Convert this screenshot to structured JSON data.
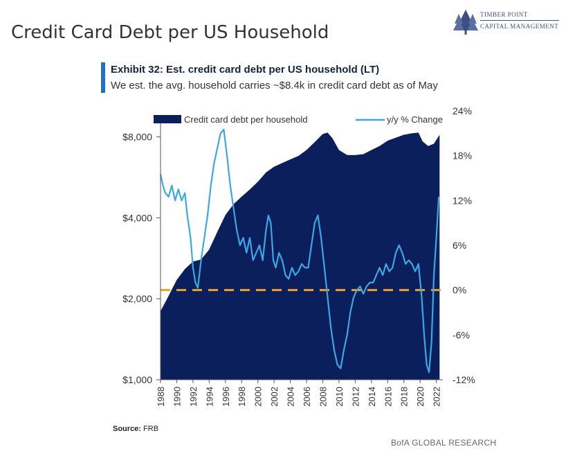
{
  "page": {
    "title": "Credit Card Debt per US Household",
    "logo": {
      "line1": "TIMBER POINT",
      "line2": "CAPITAL MANAGEMENT"
    },
    "exhibit_title": "Exhibit 32: Est. credit card debt per US household (LT)",
    "exhibit_subtitle": "We est. the avg. household carries ~$8.4k in credit card debt as of May",
    "source_label": "Source:",
    "source_value": "FRB",
    "footer": "BofA GLOBAL RESEARCH"
  },
  "colors": {
    "area": "#0b1f5c",
    "line": "#3aa8e4",
    "zero_line": "#f0a422",
    "accent_bar": "#1f6fc6"
  },
  "chart_data": {
    "type": "area",
    "legend": [
      {
        "name": "Credit card debt per household",
        "kind": "area"
      },
      {
        "name": "y/y % Change",
        "kind": "line"
      }
    ],
    "legend_position": "top",
    "x_ticks": [
      "1988",
      "1990",
      "1992",
      "1994",
      "1996",
      "1998",
      "2000",
      "2002",
      "2004",
      "2006",
      "2008",
      "2010",
      "2012",
      "2014",
      "2016",
      "2018",
      "2020",
      "2022"
    ],
    "x_range": [
      1988,
      2022.8
    ],
    "left_axis": {
      "scale": "log",
      "range": [
        1000,
        10000
      ],
      "ticks": [
        1000,
        2000,
        4000,
        8000
      ],
      "tick_labels": [
        "$1,000",
        "$2,000",
        "$4,000",
        "$8,000"
      ]
    },
    "right_axis": {
      "scale": "linear",
      "range": [
        -12,
        24
      ],
      "ticks": [
        -12,
        -6,
        0,
        6,
        12,
        18,
        24
      ],
      "tick_labels": [
        "-12%",
        "-6%",
        "0%",
        "6%",
        "12%",
        "18%",
        "24%"
      ]
    },
    "zero_reference": 0,
    "series": [
      {
        "name": "Credit card debt per household",
        "axis": "left",
        "points": [
          [
            1988.0,
            1800
          ],
          [
            1989.0,
            2050
          ],
          [
            1990.0,
            2350
          ],
          [
            1991.0,
            2580
          ],
          [
            1992.0,
            2750
          ],
          [
            1993.0,
            2800
          ],
          [
            1994.0,
            3050
          ],
          [
            1995.0,
            3550
          ],
          [
            1996.0,
            4100
          ],
          [
            1997.0,
            4500
          ],
          [
            1998.0,
            4800
          ],
          [
            1999.0,
            5100
          ],
          [
            2000.0,
            5450
          ],
          [
            2001.0,
            5900
          ],
          [
            2002.0,
            6200
          ],
          [
            2003.0,
            6400
          ],
          [
            2004.0,
            6600
          ],
          [
            2005.0,
            6800
          ],
          [
            2006.0,
            7150
          ],
          [
            2007.0,
            7650
          ],
          [
            2008.0,
            8200
          ],
          [
            2008.6,
            8300
          ],
          [
            2009.2,
            7900
          ],
          [
            2010.0,
            7150
          ],
          [
            2011.0,
            6850
          ],
          [
            2012.0,
            6850
          ],
          [
            2013.0,
            6900
          ],
          [
            2014.0,
            7150
          ],
          [
            2015.0,
            7400
          ],
          [
            2016.0,
            7750
          ],
          [
            2017.0,
            7950
          ],
          [
            2018.0,
            8150
          ],
          [
            2019.0,
            8250
          ],
          [
            2019.8,
            8300
          ],
          [
            2020.3,
            7700
          ],
          [
            2021.0,
            7400
          ],
          [
            2021.7,
            7550
          ],
          [
            2022.4,
            8150
          ]
        ]
      },
      {
        "name": "y/y % Change",
        "axis": "right",
        "points": [
          [
            1988.0,
            15.5
          ],
          [
            1988.3,
            14
          ],
          [
            1988.6,
            13
          ],
          [
            1989.0,
            12.5
          ],
          [
            1989.4,
            14
          ],
          [
            1989.8,
            12
          ],
          [
            1990.2,
            13.5
          ],
          [
            1990.6,
            12
          ],
          [
            1991.0,
            13
          ],
          [
            1991.3,
            10
          ],
          [
            1991.7,
            7
          ],
          [
            1992.0,
            3
          ],
          [
            1992.3,
            1
          ],
          [
            1992.6,
            0.3
          ],
          [
            1993.0,
            4
          ],
          [
            1993.4,
            7
          ],
          [
            1993.8,
            10
          ],
          [
            1994.2,
            14
          ],
          [
            1994.6,
            17
          ],
          [
            1995.0,
            19
          ],
          [
            1995.4,
            21
          ],
          [
            1995.8,
            21.5
          ],
          [
            1996.2,
            18
          ],
          [
            1996.6,
            14
          ],
          [
            1997.0,
            11
          ],
          [
            1997.4,
            8
          ],
          [
            1997.8,
            6
          ],
          [
            1998.2,
            7
          ],
          [
            1998.6,
            5
          ],
          [
            1999.0,
            7
          ],
          [
            1999.4,
            4
          ],
          [
            1999.8,
            5
          ],
          [
            2000.2,
            6
          ],
          [
            2000.6,
            4
          ],
          [
            2001.0,
            8
          ],
          [
            2001.3,
            10
          ],
          [
            2001.6,
            9
          ],
          [
            2001.9,
            4
          ],
          [
            2002.2,
            3
          ],
          [
            2002.6,
            5
          ],
          [
            2003.0,
            4
          ],
          [
            2003.4,
            2
          ],
          [
            2003.8,
            1.5
          ],
          [
            2004.2,
            3
          ],
          [
            2004.6,
            2
          ],
          [
            2005.0,
            2.5
          ],
          [
            2005.4,
            3.5
          ],
          [
            2005.8,
            3
          ],
          [
            2006.2,
            3
          ],
          [
            2006.6,
            6
          ],
          [
            2007.0,
            9
          ],
          [
            2007.4,
            10
          ],
          [
            2007.8,
            7
          ],
          [
            2008.2,
            3
          ],
          [
            2008.6,
            -1
          ],
          [
            2009.0,
            -5
          ],
          [
            2009.4,
            -8
          ],
          [
            2009.8,
            -10
          ],
          [
            2010.2,
            -10.5
          ],
          [
            2010.6,
            -8
          ],
          [
            2011.0,
            -6
          ],
          [
            2011.4,
            -3
          ],
          [
            2011.8,
            -1
          ],
          [
            2012.2,
            0
          ],
          [
            2012.6,
            0.5
          ],
          [
            2013.0,
            -0.5
          ],
          [
            2013.4,
            0.5
          ],
          [
            2013.8,
            1
          ],
          [
            2014.2,
            1
          ],
          [
            2014.6,
            2
          ],
          [
            2015.0,
            3
          ],
          [
            2015.4,
            2
          ],
          [
            2015.8,
            3.5
          ],
          [
            2016.2,
            2.5
          ],
          [
            2016.6,
            3
          ],
          [
            2017.0,
            5
          ],
          [
            2017.4,
            6
          ],
          [
            2017.8,
            5
          ],
          [
            2018.2,
            3.5
          ],
          [
            2018.6,
            4
          ],
          [
            2019.0,
            3.5
          ],
          [
            2019.4,
            2.5
          ],
          [
            2019.8,
            3.5
          ],
          [
            2020.2,
            -1
          ],
          [
            2020.5,
            -6
          ],
          [
            2020.8,
            -10
          ],
          [
            2021.1,
            -11
          ],
          [
            2021.4,
            -7
          ],
          [
            2021.7,
            2
          ],
          [
            2022.0,
            7
          ],
          [
            2022.3,
            12.5
          ]
        ]
      }
    ]
  }
}
